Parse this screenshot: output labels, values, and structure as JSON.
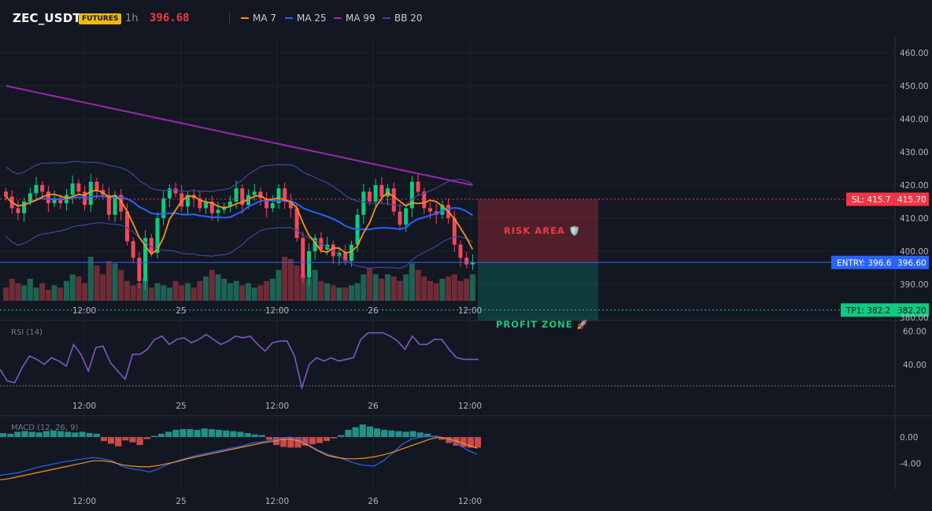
{
  "header": {
    "symbol": "ZEC_USDT",
    "badge": "FUTURES",
    "timeframe": "1h",
    "price": "396.68",
    "indicators": [
      {
        "label": "MA 7",
        "color": "#f7931a"
      },
      {
        "label": "MA 25",
        "color": "#2962ff"
      },
      {
        "label": "MA 99",
        "color": "#9c27b0"
      },
      {
        "label": "BB 20",
        "color": "#3a4a9a"
      }
    ]
  },
  "chart_data": [
    {
      "type": "candlestick",
      "ylim": [
        385,
        465
      ],
      "y_ticks": [
        "460.00",
        "450.00",
        "440.00",
        "430.00",
        "420.00",
        "410.00",
        "400.00",
        "390.00",
        "380.00"
      ],
      "x_ticks": [
        "12:00",
        "25",
        "12:00",
        "26",
        "12:00"
      ],
      "levels": {
        "sl": {
          "label": "SL: 415.7",
          "value": 415.7,
          "axis": "415.70",
          "color": "#f23645"
        },
        "entry": {
          "label": "ENTRY: 396.6",
          "value": 396.6,
          "axis": "396.60",
          "color": "#2962ff"
        },
        "tp1": {
          "label": "TP1: 382.2",
          "value": 382.2,
          "axis": "382.20",
          "color": "#089981"
        }
      },
      "zones": {
        "risk": {
          "label": "RISK AREA 🛡️",
          "color": "#f23645"
        },
        "profit": {
          "label": "PROFIT ZONE 🚀",
          "color": "#089981"
        }
      },
      "colors": {
        "up": "#0ecb81",
        "down": "#f6465d",
        "ma7": "#f7931a",
        "ma25": "#2962ff",
        "ma99": "#9c27b0",
        "bb": "#3a4a9a"
      },
      "closes": [
        416.5,
        413.0,
        411.5,
        415.0,
        417.5,
        420.0,
        418.0,
        414.5,
        416.0,
        414.5,
        417.0,
        420.5,
        418.0,
        414.0,
        421.0,
        418.5,
        417.0,
        411.0,
        417.0,
        412.0,
        403.0,
        398.0,
        391.0,
        404.0,
        399.5,
        410.0,
        416.0,
        419.0,
        417.5,
        413.5,
        417.0,
        416.0,
        413.0,
        415.0,
        411.5,
        412.5,
        413.5,
        415.0,
        419.0,
        414.0,
        417.0,
        418.0,
        416.0,
        413.0,
        414.5,
        419.0,
        415.0,
        413.0,
        404.0,
        392.0,
        400.0,
        404.0,
        400.5,
        402.0,
        398.5,
        399.5,
        397.0,
        402.0,
        411.0,
        418.0,
        415.0,
        420.0,
        416.5,
        419.0,
        412.0,
        408.0,
        413.0,
        421.0,
        418.0,
        413.0,
        412.0,
        411.0,
        414.0,
        410.0,
        402.0,
        398.0,
        396.0,
        396.68
      ],
      "volume_profile": [
        0.3,
        0.5,
        0.4,
        0.35,
        0.5,
        0.3,
        0.4,
        0.25,
        0.35,
        0.3,
        0.45,
        0.6,
        0.55,
        0.4,
        1.0,
        0.8,
        0.6,
        0.9,
        0.85,
        0.7,
        0.45,
        0.35,
        0.4,
        0.5,
        0.3,
        0.4,
        0.35,
        0.3,
        0.45,
        0.35,
        0.4,
        0.3,
        0.45,
        0.55,
        0.7,
        0.6,
        0.5,
        0.4,
        0.45,
        0.35,
        0.4,
        0.3,
        0.35,
        0.45,
        0.5,
        0.7,
        1.0,
        0.95,
        0.8,
        0.6,
        0.5,
        0.7,
        0.45,
        0.4,
        0.35,
        0.3,
        0.3,
        0.35,
        0.4,
        0.6,
        0.75,
        0.6,
        0.5,
        0.6,
        0.55,
        0.45,
        0.6,
        0.85,
        0.7,
        0.55,
        0.45,
        0.4,
        0.5,
        0.55,
        0.6,
        0.45,
        0.5,
        0.6
      ]
    },
    {
      "type": "line",
      "title": "RSI (14)",
      "ylim": [
        20,
        65
      ],
      "y_ticks": [
        "60.00",
        "40.00"
      ],
      "x_ticks": [
        "12:00",
        "25",
        "12:00",
        "26",
        "12:00"
      ],
      "color": "#7e57c2",
      "values": [
        37,
        30,
        29,
        38,
        45,
        43,
        40,
        44,
        42,
        39,
        52,
        46,
        36,
        50,
        51,
        41,
        36,
        31,
        46,
        46,
        49,
        55,
        57,
        52,
        55,
        56,
        53,
        55,
        58,
        55,
        52,
        54,
        57,
        56,
        57,
        52,
        48,
        53,
        54,
        54,
        45,
        26,
        40,
        44,
        42,
        44,
        42,
        43,
        44,
        55,
        59,
        59,
        59,
        57,
        54,
        49,
        57,
        52,
        52,
        55,
        55,
        49,
        44,
        43,
        43,
        43
      ]
    },
    {
      "type": "bar",
      "title": "MACD (12, 26, 9)",
      "ylim": [
        -8,
        3
      ],
      "y_ticks": [
        "0.00",
        "-4.00"
      ],
      "x_ticks": [
        "12:00",
        "25",
        "12:00",
        "26",
        "12:00"
      ],
      "hist": [
        0.6,
        0.5,
        0.8,
        0.9,
        0.8,
        0.7,
        0.9,
        1.0,
        0.9,
        0.8,
        0.7,
        0.8,
        0.6,
        0.5,
        -0.6,
        -1.0,
        -1.4,
        -0.5,
        -0.8,
        -1.2,
        -0.3,
        0.2,
        0.5,
        0.8,
        1.1,
        1.2,
        1.2,
        1.1,
        1.3,
        1.2,
        1.1,
        1.0,
        0.9,
        0.8,
        0.6,
        0.4,
        0.3,
        -0.4,
        -1.2,
        -1.5,
        -1.6,
        -1.6,
        -1.3,
        -1.1,
        -0.9,
        -0.6,
        -0.2,
        0.3,
        1.1,
        1.5,
        1.9,
        1.6,
        1.3,
        1.1,
        1.0,
        0.9,
        0.8,
        0.9,
        0.7,
        0.5,
        0.2,
        -0.4,
        -0.9,
        -1.3,
        -1.5,
        -1.6,
        -1.6
      ],
      "series": [
        {
          "values": [
            -5.8,
            -5.6,
            -5.4,
            -5.0,
            -4.6,
            -4.3,
            -4.0,
            -3.7,
            -3.5,
            -3.3,
            -3.1,
            -3.3,
            -3.6,
            -4.4,
            -4.8,
            -5.0,
            -5.3,
            -4.8,
            -4.1,
            -3.6,
            -3.2,
            -2.8,
            -2.5,
            -2.2,
            -1.9,
            -1.6,
            -1.3,
            -0.9,
            -0.7,
            -0.5,
            -0.2,
            0.0,
            -0.3,
            -1.2,
            -2.0,
            -2.6,
            -3.0,
            -3.5,
            -4.0,
            -4.3,
            -4.4,
            -3.6,
            -2.4,
            -1.1,
            -0.3,
            0.0,
            0.1,
            0.0,
            -0.3,
            -1.1,
            -2.0,
            -2.6
          ],
          "color": "#2962ff"
        },
        {
          "values": [
            -6.5,
            -6.3,
            -6.0,
            -5.7,
            -5.4,
            -5.1,
            -4.8,
            -4.5,
            -4.2,
            -3.9,
            -3.6,
            -3.6,
            -3.8,
            -4.2,
            -4.4,
            -4.5,
            -4.5,
            -4.3,
            -4.0,
            -3.7,
            -3.3,
            -3.0,
            -2.7,
            -2.4,
            -2.1,
            -1.8,
            -1.5,
            -1.2,
            -0.9,
            -0.7,
            -0.4,
            -0.3,
            -0.6,
            -1.3,
            -2.1,
            -2.8,
            -3.1,
            -3.3,
            -3.3,
            -3.2,
            -3.0,
            -2.7,
            -2.3,
            -1.8,
            -1.3,
            -0.8,
            -0.3,
            0.0,
            -0.3,
            -0.7,
            -1.2,
            -1.7
          ],
          "color": "#f7931a"
        }
      ]
    }
  ]
}
